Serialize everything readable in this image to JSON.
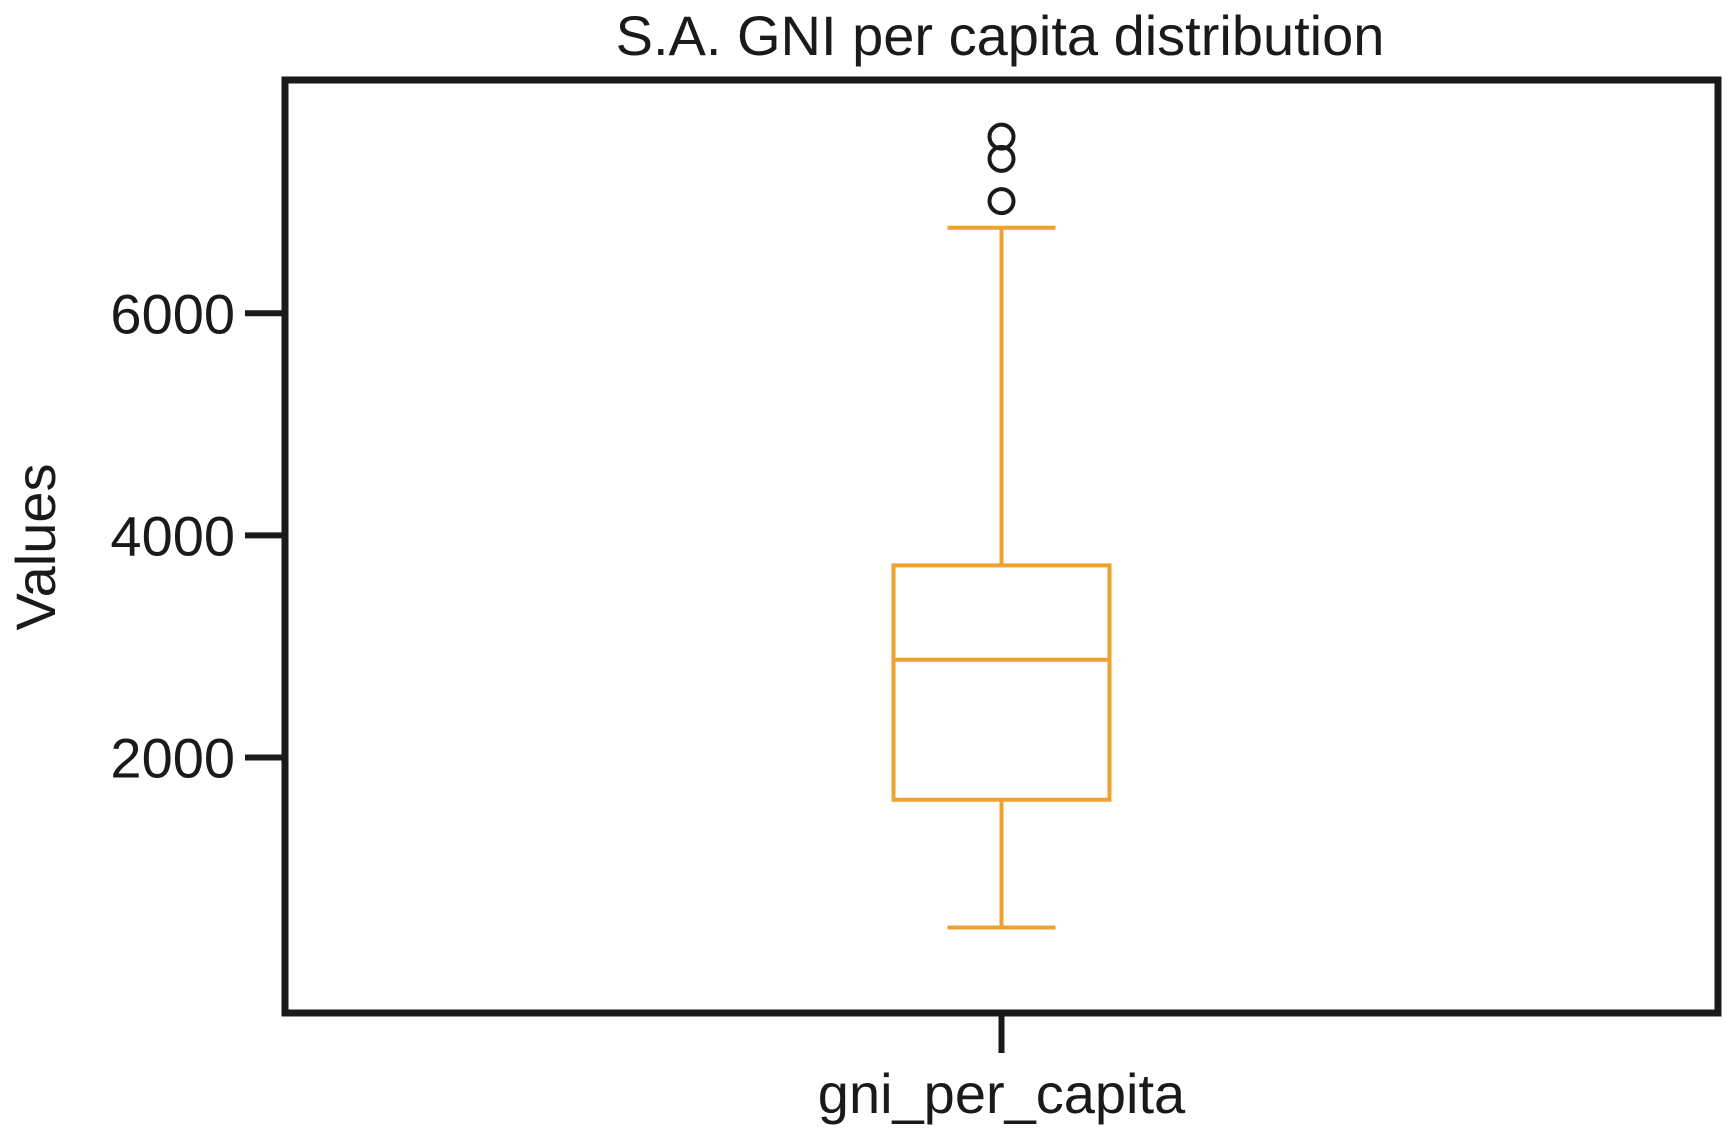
{
  "chart_data": {
    "type": "box",
    "title": "S.A. GNI per capita distribution",
    "xlabel": "",
    "ylabel": "Values",
    "categories": [
      "gni_per_capita"
    ],
    "yticks": [
      2000,
      4000,
      6000
    ],
    "ytick_labels": [
      "2000",
      "4000",
      "6000"
    ],
    "ylim": [
      -300,
      8100
    ],
    "grid": false,
    "boxes": [
      {
        "category": "gni_per_capita",
        "whisker_low": 470,
        "q1": 1620,
        "median": 2880,
        "q3": 3730,
        "whisker_high": 6770,
        "outliers": [
          7010,
          7390,
          7590
        ]
      }
    ],
    "colors": {
      "box": "#f0a030",
      "axes": "#1a1a1a",
      "outlier_edge": "#1a1a1a"
    }
  }
}
